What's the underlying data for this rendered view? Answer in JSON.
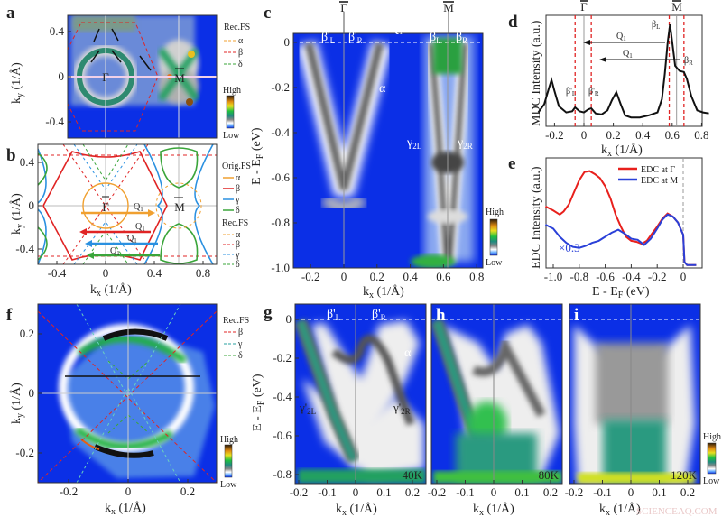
{
  "labels": {
    "k": "k",
    "x": "x",
    "y": "y",
    "inv_A": " (1/Å)",
    "E": "E - E",
    "F": "F",
    "eV": " (eV)",
    "mdc": "MDC Intensity (a.u.)",
    "edc": "EDC Intensity (a.u.)",
    "high": "High",
    "low": "Low"
  },
  "legend_a": {
    "title": "Rec.FS",
    "items": [
      "α",
      "β",
      "δ"
    ]
  },
  "legend_b": {
    "orig_title": "Orig.FS",
    "orig_items": [
      "α",
      "β",
      "γ",
      "δ"
    ],
    "rec_title": "Rec.FS",
    "rec_items": [
      "α",
      "β",
      "γ",
      "δ"
    ]
  },
  "legend_f": {
    "title": "Rec.FS",
    "items": [
      "β",
      "γ",
      "δ"
    ]
  },
  "colors": {
    "alpha": "#f0a030",
    "beta": "#e02424",
    "gamma": "#2a90e0",
    "delta": "#3aa53a",
    "map_bg": "#0b2fe6",
    "edc_gamma": "#e8201c",
    "edc_m": "#2a40d8"
  },
  "symbols": {
    "gamma_point": "Γ",
    "m_point": "M",
    "q1": "Q",
    "q1_sub": "1"
  },
  "annotations": {
    "c": {
      "bL_p": "β'",
      "bR_p": "β'",
      "bL": "β",
      "bR": "β",
      "L": "L",
      "R": "R",
      "alpha": "α",
      "g2L": "γ",
      "g2R": "γ",
      "s2L": "2L",
      "s2R": "2R"
    },
    "d": {
      "bL": "β",
      "bR": "β",
      "bLp": "β'",
      "bRp": "β'",
      "L": "L",
      "R": "R"
    },
    "e": {
      "scale": "×0.3"
    },
    "g": {
      "bLp": "β'",
      "bRp": "β'",
      "L": "L",
      "R": "R",
      "alpha": "α",
      "g2L": "γ'",
      "g2R": "γ'",
      "s2L": "2L",
      "s2R": "2R",
      "temp": "40K"
    },
    "h": {
      "temp": "80K"
    },
    "i": {
      "temp": "120K"
    }
  },
  "watermark": "SCIENCEAQ.COM",
  "chart_data": [
    {
      "panel": "a",
      "type": "heatmap",
      "title": "",
      "xlabel": "kx (1/Å)",
      "ylabel": "ky (1/Å)",
      "xlim": [
        -0.31,
        0.91
      ],
      "ylim": [
        -0.54,
        0.54
      ],
      "xticks": [],
      "yticks": [
        0.4,
        0,
        -0.4
      ],
      "colorbar": [
        "High",
        "Low"
      ]
    },
    {
      "panel": "b",
      "type": "line",
      "title": "",
      "xlabel": "kx (1/Å)",
      "ylabel": "ky (1/Å)",
      "xlim": [
        -0.31,
        0.91
      ],
      "ylim": [
        -0.54,
        0.57
      ],
      "xticks": [
        -0.4,
        0,
        0.4,
        0.8
      ],
      "yticks": [
        0.4,
        0,
        -0.4
      ],
      "legend": [
        "Orig.FS α",
        "Orig.FS β",
        "Orig.FS γ",
        "Orig.FS δ",
        "Rec.FS α",
        "Rec.FS β",
        "Rec.FS γ",
        "Rec.FS δ"
      ]
    },
    {
      "panel": "c",
      "type": "heatmap",
      "title": "",
      "xlabel": "kx (1/Å)",
      "ylabel": "E - EF (eV)",
      "xlim": [
        -0.3,
        0.83
      ],
      "ylim": [
        -1.0,
        0.04
      ],
      "xticks": [
        -0.2,
        0,
        0.2,
        0.4,
        0.6,
        0.8
      ],
      "yticks": [
        0,
        -0.2,
        -0.4,
        -0.6,
        -0.8,
        -1.0
      ],
      "colorbar": [
        "High",
        "Low"
      ]
    },
    {
      "panel": "d",
      "type": "line",
      "title": "",
      "xlabel": "kx (1/Å)",
      "ylabel": "MDC Intensity (a.u.)",
      "xlim": [
        -0.31,
        0.85
      ],
      "ylim": [
        0,
        1.05
      ],
      "xticks": [
        -0.2,
        0,
        0.2,
        0.4,
        0.6,
        0.8
      ],
      "series": [
        {
          "x": [
            -0.31,
            -0.27,
            -0.24,
            -0.22,
            -0.2,
            -0.17,
            -0.12,
            -0.08,
            -0.06,
            -0.03,
            0.0,
            0.03,
            0.05,
            0.08,
            0.12,
            0.16,
            0.19,
            0.22,
            0.25,
            0.28,
            0.32,
            0.38,
            0.44,
            0.5,
            0.53,
            0.55,
            0.57,
            0.585,
            0.6,
            0.62,
            0.65,
            0.68,
            0.7,
            0.73,
            0.77,
            0.81,
            0.85
          ],
          "y": [
            0.12,
            0.2,
            0.35,
            0.44,
            0.33,
            0.18,
            0.12,
            0.13,
            0.17,
            0.13,
            0.12,
            0.15,
            0.16,
            0.11,
            0.1,
            0.14,
            0.24,
            0.32,
            0.2,
            0.09,
            0.07,
            0.07,
            0.09,
            0.12,
            0.25,
            0.5,
            0.82,
            0.99,
            0.82,
            0.58,
            0.53,
            0.52,
            0.45,
            0.28,
            0.14,
            0.12,
            0.11
          ]
        }
      ],
      "vlines_dashed": [
        -0.06,
        0.05,
        0.58,
        0.68
      ],
      "vlines_solid": [
        0,
        0.63
      ]
    },
    {
      "panel": "e",
      "type": "line",
      "title": "",
      "xlabel": "E - EF (eV)",
      "ylabel": "EDC Intensity (a.u.)",
      "xlim": [
        -1.06,
        0.1
      ],
      "ylim": [
        0,
        1.05
      ],
      "xticks": [
        -1.0,
        -0.8,
        -0.6,
        -0.4,
        -0.2,
        0
      ],
      "legend_position": "top-right",
      "series": [
        {
          "name": "EDC at Γ",
          "x": [
            -1.06,
            -1.0,
            -0.95,
            -0.92,
            -0.88,
            -0.84,
            -0.8,
            -0.76,
            -0.72,
            -0.68,
            -0.64,
            -0.6,
            -0.56,
            -0.52,
            -0.48,
            -0.44,
            -0.4,
            -0.36,
            -0.32,
            -0.28,
            -0.24,
            -0.2,
            -0.16,
            -0.12,
            -0.08,
            -0.04,
            0.0,
            0.01,
            0.03,
            0.1
          ],
          "y": [
            0.6,
            0.56,
            0.52,
            0.55,
            0.62,
            0.74,
            0.86,
            0.94,
            0.95,
            0.92,
            0.88,
            0.8,
            0.68,
            0.52,
            0.4,
            0.3,
            0.26,
            0.25,
            0.23,
            0.26,
            0.33,
            0.4,
            0.48,
            0.53,
            0.5,
            0.44,
            0.32,
            0.05,
            0.02,
            0.02
          ]
        },
        {
          "name": "EDC at M",
          "x": [
            -1.06,
            -1.0,
            -0.95,
            -0.9,
            -0.85,
            -0.8,
            -0.75,
            -0.7,
            -0.65,
            -0.6,
            -0.55,
            -0.5,
            -0.45,
            -0.4,
            -0.35,
            -0.3,
            -0.25,
            -0.2,
            -0.16,
            -0.12,
            -0.08,
            -0.04,
            0.0,
            0.01,
            0.03,
            0.1
          ],
          "y": [
            0.42,
            0.38,
            0.3,
            0.24,
            0.2,
            0.19,
            0.21,
            0.24,
            0.26,
            0.3,
            0.34,
            0.37,
            0.33,
            0.28,
            0.27,
            0.22,
            0.28,
            0.38,
            0.47,
            0.52,
            0.5,
            0.44,
            0.32,
            0.05,
            0.02,
            0.02
          ]
        }
      ],
      "vline_dashed": 0
    },
    {
      "panel": "f",
      "type": "heatmap",
      "title": "",
      "xlabel": "kx (1/Å)",
      "ylabel": "ky (1/Å)",
      "xlim": [
        -0.3,
        0.3
      ],
      "ylim": [
        -0.3,
        0.3
      ],
      "xticks": [
        -0.2,
        0,
        0.2
      ],
      "yticks": [
        0.2,
        0,
        -0.2
      ],
      "colorbar": [
        "High",
        "Low"
      ]
    },
    {
      "panel": "g",
      "type": "heatmap",
      "title": "",
      "xlabel": "kx (1/Å)",
      "ylabel": "E - EF (eV)",
      "xlim": [
        -0.21,
        0.25
      ],
      "ylim": [
        -0.85,
        0.08
      ],
      "xticks": [
        -0.2,
        -0.1,
        0,
        0.1,
        0.2
      ],
      "yticks": [
        0,
        -0.2,
        -0.4,
        -0.6,
        -0.8
      ],
      "temperature": "40K"
    },
    {
      "panel": "h",
      "type": "heatmap",
      "title": "",
      "xlabel": "kx (1/Å)",
      "ylabel": "",
      "xlim": [
        -0.21,
        0.25
      ],
      "ylim": [
        -0.85,
        0.08
      ],
      "xticks": [
        -0.2,
        -0.1,
        0,
        0.1,
        0.2
      ],
      "yticks": [],
      "temperature": "80K"
    },
    {
      "panel": "i",
      "type": "heatmap",
      "title": "",
      "xlabel": "kx (1/Å)",
      "ylabel": "",
      "xlim": [
        -0.21,
        0.25
      ],
      "ylim": [
        -0.85,
        0.08
      ],
      "xticks": [
        -0.2,
        -0.1,
        0,
        0.1,
        0.2
      ],
      "yticks": [],
      "temperature": "120K",
      "colorbar": [
        "High",
        "Low"
      ]
    }
  ],
  "panel_letters": {
    "a": "a",
    "b": "b",
    "c": "c",
    "d": "d",
    "e": "e",
    "f": "f",
    "g": "g",
    "h": "h",
    "i": "i"
  }
}
